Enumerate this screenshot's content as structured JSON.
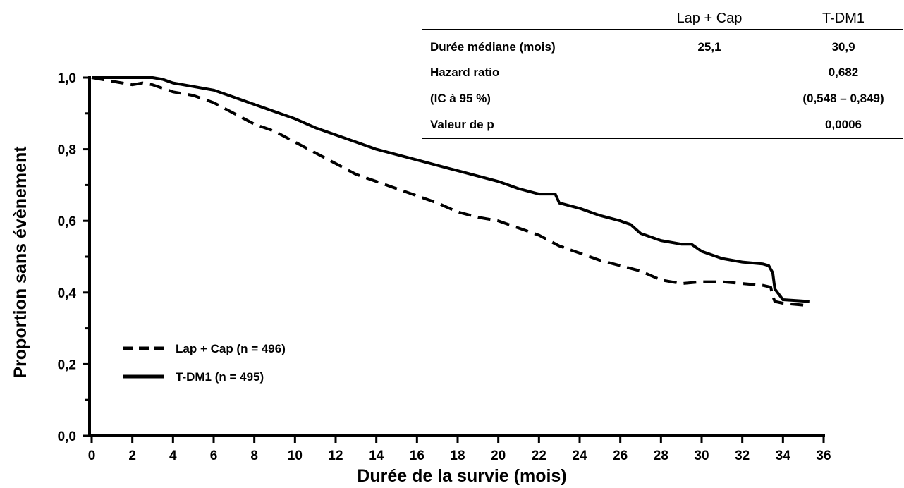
{
  "chart_data": {
    "type": "line",
    "xlabel": "Durée de la survie (mois)",
    "ylabel": "Proportion sans évènement",
    "xlim": [
      0,
      36
    ],
    "ylim": [
      0,
      1
    ],
    "x_ticks": [
      0,
      2,
      4,
      6,
      8,
      10,
      12,
      14,
      16,
      18,
      20,
      22,
      24,
      26,
      28,
      30,
      32,
      34,
      36
    ],
    "x_tick_labels": [
      "0",
      "2",
      "4",
      "6",
      "8",
      "10",
      "12",
      "14",
      "16",
      "18",
      "20",
      "22",
      "24",
      "26",
      "28",
      "30",
      "32",
      "34",
      "36"
    ],
    "y_ticks": [
      0,
      0.2,
      0.4,
      0.6,
      0.8,
      1.0
    ],
    "y_tick_labels": [
      "0,0",
      "0,2",
      "0,4",
      "0,6",
      "0,8",
      "1,0"
    ],
    "y_minor_ticks": [
      0.1,
      0.3,
      0.5,
      0.7,
      0.9
    ],
    "grid": false,
    "legend_position": "bottom-left",
    "series": [
      {
        "name": "Lap + Cap (n = 496)",
        "style": "dashed",
        "color": "#000000",
        "x": [
          0,
          1,
          2,
          2.5,
          3,
          4,
          5,
          6,
          7,
          8,
          9,
          10,
          11,
          12,
          13,
          14,
          15,
          16,
          17,
          18,
          19,
          20,
          21,
          22,
          23,
          24,
          25,
          26,
          27,
          28,
          29,
          30,
          31,
          32,
          33,
          33.4,
          33.5,
          33.6,
          34,
          35
        ],
        "y": [
          1.0,
          0.99,
          0.98,
          0.985,
          0.98,
          0.96,
          0.95,
          0.93,
          0.9,
          0.87,
          0.85,
          0.82,
          0.79,
          0.76,
          0.73,
          0.71,
          0.69,
          0.67,
          0.65,
          0.625,
          0.61,
          0.6,
          0.58,
          0.56,
          0.53,
          0.51,
          0.49,
          0.475,
          0.46,
          0.435,
          0.425,
          0.43,
          0.43,
          0.425,
          0.42,
          0.415,
          0.39,
          0.375,
          0.37,
          0.365
        ]
      },
      {
        "name": "T-DM1 (n = 495)",
        "style": "solid",
        "color": "#000000",
        "x": [
          0,
          1,
          2,
          3,
          3.5,
          4,
          5,
          6,
          7,
          8,
          9,
          10,
          11,
          12,
          13,
          14,
          15,
          16,
          17,
          18,
          19,
          20,
          21,
          22,
          22.8,
          23,
          24,
          25,
          26,
          26.5,
          27,
          28,
          29,
          29.5,
          30,
          31,
          32,
          33,
          33.3,
          33.5,
          33.6,
          34,
          35.3
        ],
        "y": [
          1.0,
          1.0,
          1.0,
          1.0,
          0.995,
          0.985,
          0.975,
          0.965,
          0.945,
          0.925,
          0.905,
          0.885,
          0.86,
          0.84,
          0.82,
          0.8,
          0.785,
          0.77,
          0.755,
          0.74,
          0.725,
          0.71,
          0.69,
          0.675,
          0.675,
          0.65,
          0.635,
          0.615,
          0.6,
          0.59,
          0.565,
          0.545,
          0.535,
          0.535,
          0.515,
          0.495,
          0.485,
          0.48,
          0.475,
          0.455,
          0.41,
          0.38,
          0.375
        ]
      }
    ]
  },
  "stats_table": {
    "columns": [
      "Lap + Cap",
      "T-DM1"
    ],
    "rows": [
      {
        "label": "Durée médiane (mois)",
        "values": [
          "25,1",
          "30,9"
        ]
      },
      {
        "label": "Hazard ratio",
        "values": [
          "",
          "0,682"
        ]
      },
      {
        "label": "(IC à 95 %)",
        "values": [
          "",
          "(0,548 – 0,849)"
        ]
      },
      {
        "label": "Valeur de p",
        "values": [
          "",
          "0,0006"
        ]
      }
    ]
  }
}
